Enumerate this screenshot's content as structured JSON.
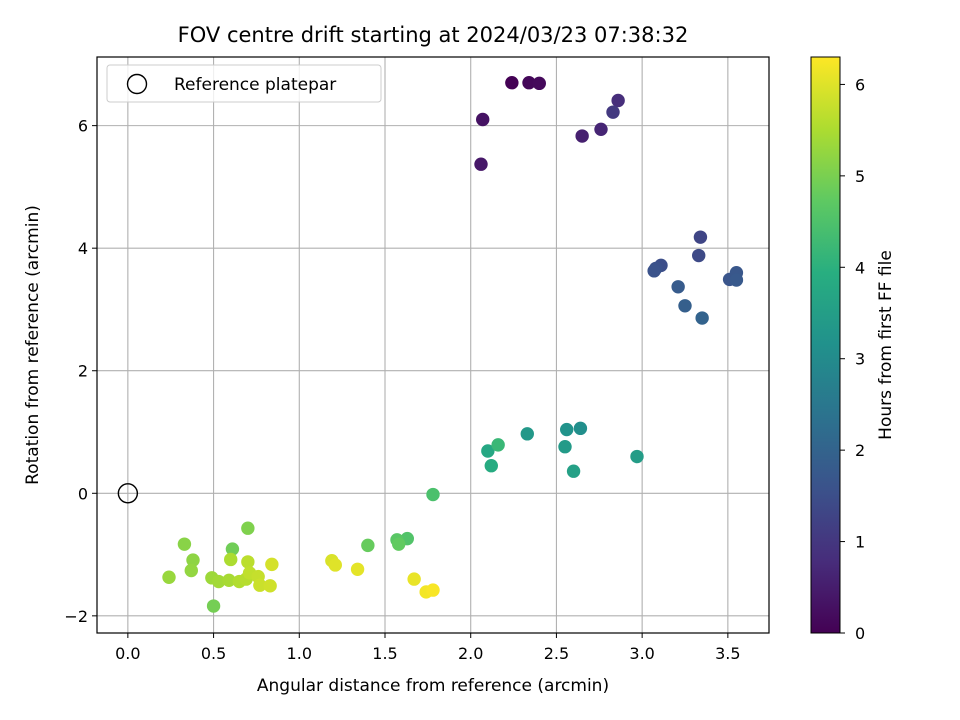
{
  "chart_data": {
    "type": "scatter",
    "title": "FOV centre drift starting at 2024/03/23 07:38:32",
    "xlabel": "Angular distance from reference (arcmin)",
    "ylabel": "Rotation from reference (arcmin)",
    "colorbar_label": "Hours from first FF file",
    "colormap": "viridis",
    "xlim": [
      -0.18,
      3.74
    ],
    "ylim": [
      -2.28,
      7.12
    ],
    "clim": [
      0,
      6.3
    ],
    "x_ticks": [
      0.0,
      0.5,
      1.0,
      1.5,
      2.0,
      2.5,
      3.0,
      3.5
    ],
    "x_tick_labels": [
      "0.0",
      "0.5",
      "1.0",
      "1.5",
      "2.0",
      "2.5",
      "3.0",
      "3.5"
    ],
    "y_ticks": [
      -2,
      0,
      2,
      4,
      6
    ],
    "y_tick_labels": [
      "−2",
      "0",
      "2",
      "4",
      "6"
    ],
    "colorbar_ticks": [
      0,
      1,
      2,
      3,
      4,
      5,
      6
    ],
    "colorbar_tick_labels": [
      "0",
      "1",
      "2",
      "3",
      "4",
      "5",
      "6"
    ],
    "grid": true,
    "legend": {
      "placement": "top-left",
      "entries": [
        {
          "label": "Reference platepar",
          "marker": "open-circle",
          "x": 0.0,
          "y": 0.0
        }
      ]
    },
    "points": [
      {
        "x": 2.24,
        "y": 6.7,
        "c": 0.0
      },
      {
        "x": 2.34,
        "y": 6.7,
        "c": 0.1
      },
      {
        "x": 2.4,
        "y": 6.69,
        "c": 0.15
      },
      {
        "x": 2.07,
        "y": 6.1,
        "c": 0.3
      },
      {
        "x": 2.06,
        "y": 5.37,
        "c": 0.4
      },
      {
        "x": 2.65,
        "y": 5.83,
        "c": 0.55
      },
      {
        "x": 2.76,
        "y": 5.94,
        "c": 0.65
      },
      {
        "x": 2.86,
        "y": 6.41,
        "c": 0.8
      },
      {
        "x": 2.83,
        "y": 6.22,
        "c": 1.05
      },
      {
        "x": 3.34,
        "y": 4.18,
        "c": 1.3
      },
      {
        "x": 3.33,
        "y": 3.88,
        "c": 1.4
      },
      {
        "x": 3.11,
        "y": 3.72,
        "c": 1.5
      },
      {
        "x": 3.08,
        "y": 3.67,
        "c": 1.55
      },
      {
        "x": 3.07,
        "y": 3.63,
        "c": 1.6
      },
      {
        "x": 3.51,
        "y": 3.49,
        "c": 1.65
      },
      {
        "x": 3.55,
        "y": 3.6,
        "c": 1.7
      },
      {
        "x": 3.55,
        "y": 3.48,
        "c": 1.75
      },
      {
        "x": 3.21,
        "y": 3.37,
        "c": 1.8
      },
      {
        "x": 3.25,
        "y": 3.06,
        "c": 1.9
      },
      {
        "x": 3.35,
        "y": 2.86,
        "c": 2.0
      },
      {
        "x": 2.64,
        "y": 1.06,
        "c": 3.1
      },
      {
        "x": 2.56,
        "y": 1.04,
        "c": 3.2
      },
      {
        "x": 2.33,
        "y": 0.97,
        "c": 3.35
      },
      {
        "x": 2.55,
        "y": 0.76,
        "c": 3.4
      },
      {
        "x": 2.97,
        "y": 0.6,
        "c": 3.45
      },
      {
        "x": 2.6,
        "y": 0.36,
        "c": 3.55
      },
      {
        "x": 2.1,
        "y": 0.69,
        "c": 3.75
      },
      {
        "x": 2.12,
        "y": 0.45,
        "c": 3.85
      },
      {
        "x": 2.16,
        "y": 0.79,
        "c": 4.2
      },
      {
        "x": 1.78,
        "y": -0.02,
        "c": 4.45
      },
      {
        "x": 1.63,
        "y": -0.74,
        "c": 4.55
      },
      {
        "x": 1.57,
        "y": -0.76,
        "c": 4.65
      },
      {
        "x": 1.58,
        "y": -0.83,
        "c": 4.75
      },
      {
        "x": 1.4,
        "y": -0.85,
        "c": 4.8
      },
      {
        "x": 0.61,
        "y": -0.91,
        "c": 4.9
      },
      {
        "x": 0.5,
        "y": -1.84,
        "c": 4.95
      },
      {
        "x": 0.7,
        "y": -0.57,
        "c": 5.05
      },
      {
        "x": 0.33,
        "y": -0.83,
        "c": 5.15
      },
      {
        "x": 0.38,
        "y": -1.09,
        "c": 5.2
      },
      {
        "x": 0.37,
        "y": -1.26,
        "c": 5.25
      },
      {
        "x": 0.24,
        "y": -1.37,
        "c": 5.3
      },
      {
        "x": 0.49,
        "y": -1.38,
        "c": 5.35
      },
      {
        "x": 0.53,
        "y": -1.44,
        "c": 5.4
      },
      {
        "x": 0.59,
        "y": -1.42,
        "c": 5.45
      },
      {
        "x": 0.6,
        "y": -1.08,
        "c": 5.5
      },
      {
        "x": 0.65,
        "y": -1.44,
        "c": 5.55
      },
      {
        "x": 0.69,
        "y": -1.4,
        "c": 5.6
      },
      {
        "x": 0.7,
        "y": -1.12,
        "c": 5.65
      },
      {
        "x": 0.71,
        "y": -1.3,
        "c": 5.7
      },
      {
        "x": 0.76,
        "y": -1.36,
        "c": 5.75
      },
      {
        "x": 0.77,
        "y": -1.5,
        "c": 5.8
      },
      {
        "x": 0.83,
        "y": -1.51,
        "c": 5.85
      },
      {
        "x": 0.84,
        "y": -1.16,
        "c": 5.9
      },
      {
        "x": 1.19,
        "y": -1.1,
        "c": 5.95
      },
      {
        "x": 1.21,
        "y": -1.17,
        "c": 6.0
      },
      {
        "x": 1.34,
        "y": -1.24,
        "c": 6.05
      },
      {
        "x": 1.67,
        "y": -1.4,
        "c": 6.1
      },
      {
        "x": 1.74,
        "y": -1.61,
        "c": 6.2
      },
      {
        "x": 1.78,
        "y": -1.58,
        "c": 6.25
      }
    ]
  }
}
